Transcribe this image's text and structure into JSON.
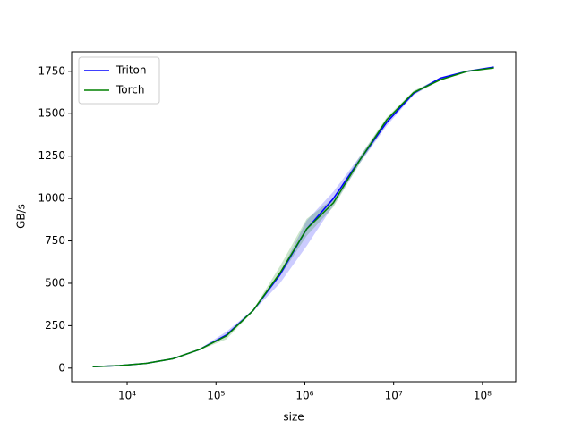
{
  "chart_data": {
    "type": "line",
    "x_label": "size",
    "y_label": "GB/s",
    "x": [
      4096,
      8192,
      16384,
      32768,
      65536,
      131072,
      262144,
      524288,
      1048576,
      2097152,
      4194304,
      8388608,
      16777216,
      33554432,
      67108864,
      134217728
    ],
    "series": [
      {
        "name": "Triton",
        "color": "#0000ff",
        "values": [
          8,
          15,
          28,
          55,
          110,
          195,
          340,
          550,
          820,
          1000,
          1230,
          1450,
          1620,
          1710,
          1750,
          1775
        ],
        "lower": [
          7,
          14,
          27,
          53,
          106,
          185,
          335,
          500,
          720,
          960,
          1210,
          1430,
          1610,
          1700,
          1745,
          1770
        ],
        "upper": [
          9,
          16,
          29,
          57,
          114,
          215,
          345,
          560,
          870,
          1040,
          1250,
          1470,
          1630,
          1715,
          1755,
          1780
        ]
      },
      {
        "name": "Torch",
        "color": "#008000",
        "values": [
          8,
          15,
          28,
          55,
          110,
          190,
          340,
          560,
          820,
          975,
          1230,
          1465,
          1625,
          1700,
          1750,
          1770
        ],
        "lower": [
          7,
          14,
          27,
          53,
          106,
          170,
          335,
          540,
          780,
          950,
          1210,
          1445,
          1615,
          1695,
          1745,
          1765
        ],
        "upper": [
          9,
          16,
          29,
          57,
          114,
          200,
          345,
          600,
          880,
          1000,
          1250,
          1480,
          1635,
          1710,
          1755,
          1775
        ]
      }
    ],
    "xscale": "log",
    "xlim": [
      2370,
      236600000
    ],
    "xticks": [
      {
        "value": 10000,
        "label": "10⁴"
      },
      {
        "value": 100000,
        "label": "10⁵"
      },
      {
        "value": 1000000,
        "label": "10⁶"
      },
      {
        "value": 10000000,
        "label": "10⁷"
      },
      {
        "value": 100000000,
        "label": "10⁸"
      }
    ],
    "ylim": [
      -80,
      1865
    ],
    "yticks": [
      0,
      250,
      500,
      750,
      1000,
      1250,
      1500,
      1750
    ],
    "legend": "upper left",
    "grid": false
  }
}
